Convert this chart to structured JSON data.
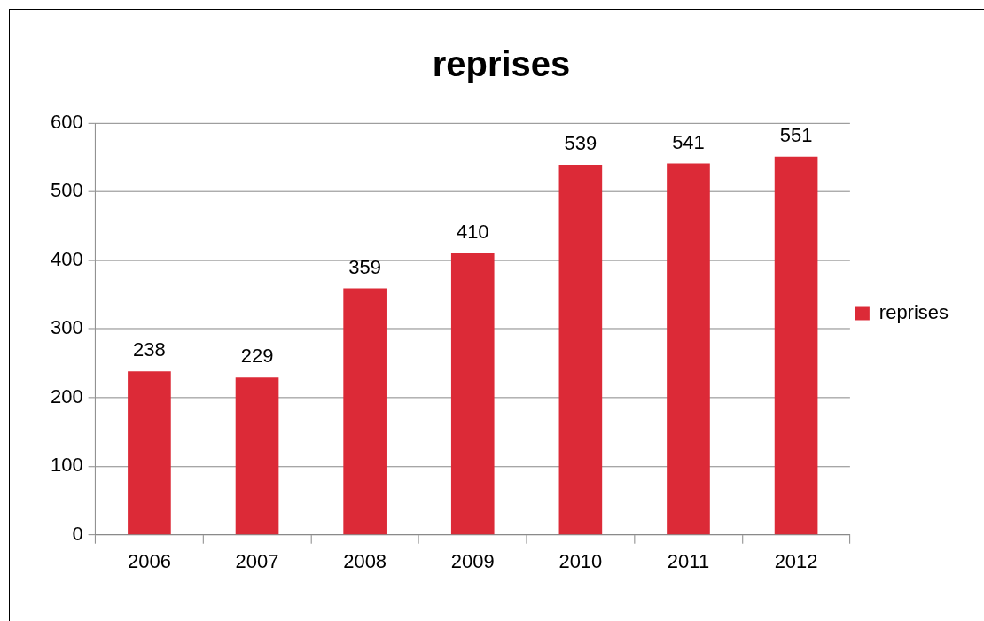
{
  "chart_data": {
    "type": "bar",
    "title": "reprises",
    "categories": [
      "2006",
      "2007",
      "2008",
      "2009",
      "2010",
      "2011",
      "2012"
    ],
    "series": [
      {
        "name": "reprises",
        "color": "#dc2a37",
        "values": [
          238,
          229,
          359,
          410,
          539,
          541,
          551
        ]
      }
    ],
    "ylim": [
      0,
      600
    ],
    "yticks": [
      0,
      100,
      200,
      300,
      400,
      500,
      600
    ],
    "grid": "y",
    "legend": "right",
    "data_labels": true
  }
}
